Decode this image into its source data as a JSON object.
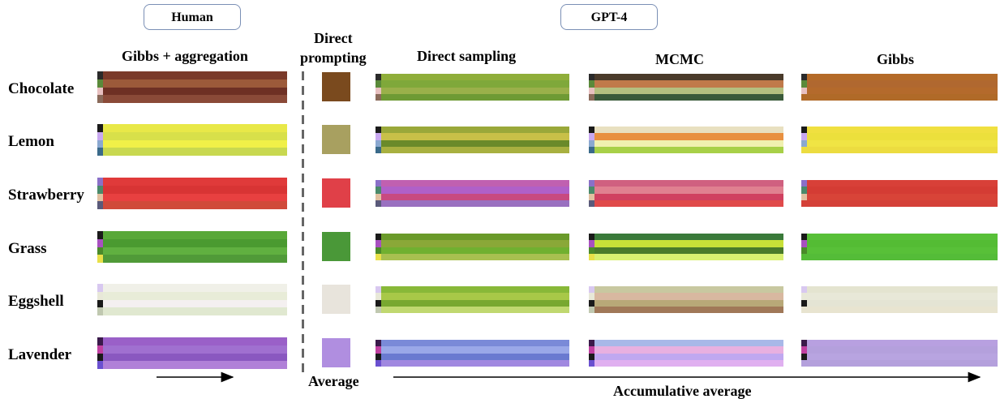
{
  "groups": {
    "human": "Human",
    "gpt4": "GPT-4"
  },
  "columns": {
    "gibbs_aggregation": "Gibbs + aggregation",
    "direct_prompting_line1": "Direct",
    "direct_prompting_line2": "prompting",
    "direct_sampling": "Direct sampling",
    "mcmc": "MCMC",
    "gibbs": "Gibbs"
  },
  "footer": {
    "average": "Average",
    "accumulative": "Accumulative average"
  },
  "rows": [
    {
      "label": "Chocolate",
      "human": [
        "#7a3a2a",
        "#9c5a3a",
        "#6e3024",
        "#8a4a38"
      ],
      "average": "#7a4a1e",
      "direct_sampling": [
        "#8fae3a",
        "#7fa83a",
        "#9ab04a",
        "#6e9a34"
      ],
      "mcmc": [
        "#4a3a2a",
        "#c07a4a",
        "#b4c080",
        "#3a5a3a"
      ],
      "gibbs": [
        "#b46a28",
        "#b06830",
        "#b46a2c",
        "#b06a28"
      ],
      "lead": [
        "#2a2a2a",
        "#5a8a3a",
        "#e8c0c0",
        "#8a6a5a"
      ]
    },
    {
      "label": "Lemon",
      "human": [
        "#e8e848",
        "#d8e04a",
        "#f0f048",
        "#c8d850"
      ],
      "average": "#a8a060",
      "direct_sampling": [
        "#9aa83a",
        "#c8c048",
        "#6a8a2a",
        "#a8b040"
      ],
      "mcmc": [
        "#e8e0c0",
        "#e89040",
        "#f0f0b0",
        "#a8d048"
      ],
      "gibbs": [
        "#f0e040",
        "#ece03c",
        "#f0e444",
        "#ecdc40"
      ],
      "lead": [
        "#1a1a1a",
        "#c8a8f0",
        "#8aa8d0",
        "#3a6a8a"
      ]
    },
    {
      "label": "Strawberry",
      "human": [
        "#e03a3a",
        "#d83434",
        "#e84040",
        "#d04a3a"
      ],
      "average": "#e04048",
      "direct_sampling": [
        "#c060b0",
        "#b060c8",
        "#c84a80",
        "#9a70c0"
      ],
      "mcmc": [
        "#d06080",
        "#e08090",
        "#d04060",
        "#e04a4a"
      ],
      "gibbs": [
        "#d84038",
        "#d43c34",
        "#d84438",
        "#d44038"
      ],
      "lead": [
        "#8a70c8",
        "#4a8a6a",
        "#e0c0a0",
        "#5a5a7a"
      ]
    },
    {
      "label": "Grass",
      "human": [
        "#58a838",
        "#4a9a30",
        "#60b040",
        "#509a38"
      ],
      "average": "#4a9838",
      "direct_sampling": [
        "#6a9a2a",
        "#8aa838",
        "#70b030",
        "#a8c050"
      ],
      "mcmc": [
        "#3a7a3a",
        "#c8e038",
        "#4a7a2a",
        "#d8f070"
      ],
      "gibbs": [
        "#58c038",
        "#54bc34",
        "#58c038",
        "#54bc38"
      ],
      "lead": [
        "#1a1a1a",
        "#a850c0",
        "#4a8a2a",
        "#e8e048"
      ]
    },
    {
      "label": "Eggshell",
      "human": [
        "#f0f0e8",
        "#e8ecd8",
        "#f4f0f0",
        "#e0e8d0"
      ],
      "average": "#e8e4dc",
      "direct_sampling": [
        "#88b838",
        "#a8c848",
        "#78a830",
        "#c0d870"
      ],
      "mcmc": [
        "#c8c8a0",
        "#d8b8a0",
        "#b8a878",
        "#a07858"
      ],
      "gibbs": [
        "#e4e4d0",
        "#e8e8d8",
        "#e4e4d4",
        "#e8e4d0"
      ],
      "lead": [
        "#d8c8f0",
        "#e8e8d8",
        "#1a1a1a",
        "#c0c8b0"
      ]
    },
    {
      "label": "Lavender",
      "human": [
        "#9a60c8",
        "#a070d0",
        "#8a58c0",
        "#b080d8"
      ],
      "average": "#b08ee0",
      "direct_sampling": [
        "#7a8ad8",
        "#9aa8e8",
        "#6a7ad0",
        "#a088e0"
      ],
      "mcmc": [
        "#a8b8e8",
        "#e8b0e0",
        "#c0a8f0",
        "#e0b0f0"
      ],
      "gibbs": [
        "#b8a0e0",
        "#b4a0dc",
        "#b8a4e0",
        "#b4a0dc"
      ],
      "lead": [
        "#3a1a4a",
        "#c040a0",
        "#1a1a1a",
        "#6a50d0"
      ]
    }
  ]
}
